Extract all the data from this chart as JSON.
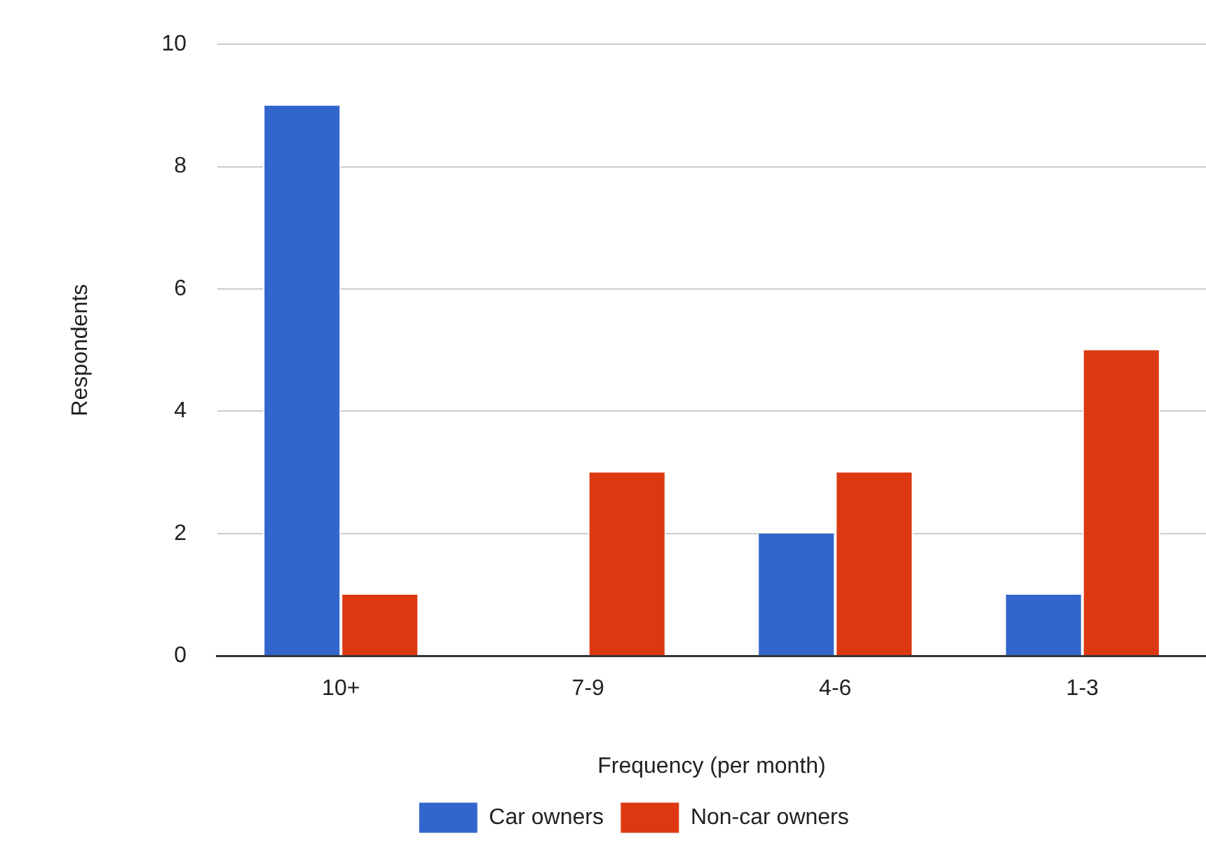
{
  "chart_data": {
    "type": "bar",
    "xlabel": "Frequency (per month)",
    "ylabel": "Respondents",
    "categories": [
      "10+",
      "7-9",
      "4-6",
      "1-3"
    ],
    "series": [
      {
        "name": "Car owners",
        "color": "#3366cc",
        "values": [
          9,
          0,
          2,
          1
        ]
      },
      {
        "name": "Non-car owners",
        "color": "#dc3912",
        "values": [
          1,
          3,
          3,
          5
        ]
      }
    ],
    "ylim": [
      0,
      10
    ],
    "yticks": [
      0,
      2,
      4,
      6,
      8,
      10
    ],
    "grid": "y",
    "legend": "bottom"
  }
}
